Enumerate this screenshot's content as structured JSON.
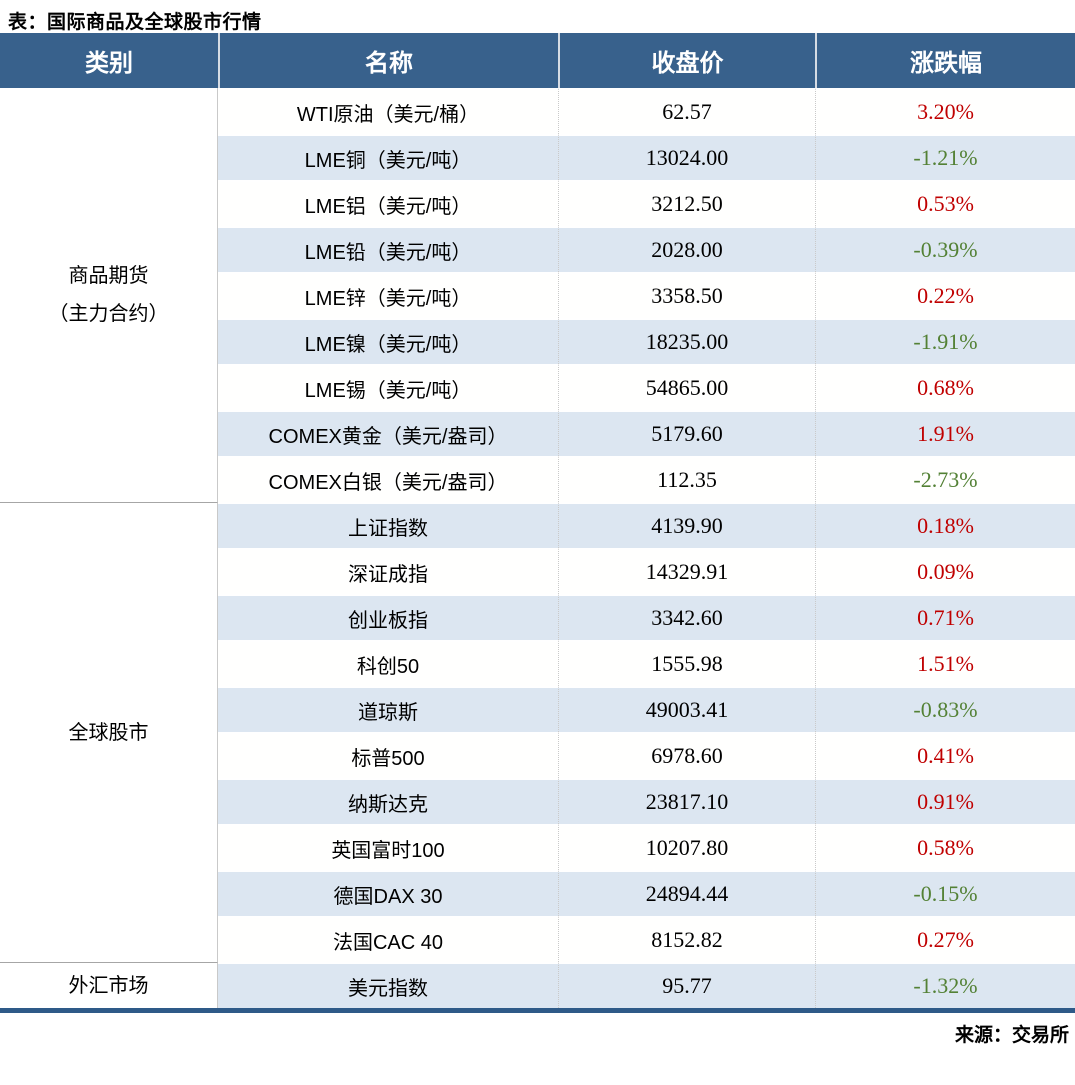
{
  "chart_data": {
    "type": "table",
    "title": "表：国际商品及全球股市行情",
    "source": "来源：交易所",
    "columns": [
      "类别",
      "名称",
      "收盘价",
      "涨跌幅"
    ],
    "groups": [
      {
        "category": "商品期货\n（主力合约）",
        "rows": [
          {
            "name": "WTI原油（美元/桶）",
            "close": "62.57",
            "change": "3.20%",
            "dir": "up"
          },
          {
            "name": "LME铜（美元/吨）",
            "close": "13024.00",
            "change": "-1.21%",
            "dir": "down"
          },
          {
            "name": "LME铝（美元/吨）",
            "close": "3212.50",
            "change": "0.53%",
            "dir": "up"
          },
          {
            "name": "LME铅（美元/吨）",
            "close": "2028.00",
            "change": "-0.39%",
            "dir": "down"
          },
          {
            "name": "LME锌（美元/吨）",
            "close": "3358.50",
            "change": "0.22%",
            "dir": "up"
          },
          {
            "name": "LME镍（美元/吨）",
            "close": "18235.00",
            "change": "-1.91%",
            "dir": "down"
          },
          {
            "name": "LME锡（美元/吨）",
            "close": "54865.00",
            "change": "0.68%",
            "dir": "up"
          },
          {
            "name": "COMEX黄金（美元/盎司）",
            "close": "5179.60",
            "change": "1.91%",
            "dir": "up"
          },
          {
            "name": "COMEX白银（美元/盎司）",
            "close": "112.35",
            "change": "-2.73%",
            "dir": "down"
          }
        ]
      },
      {
        "category": "全球股市",
        "rows": [
          {
            "name": "上证指数",
            "close": "4139.90",
            "change": "0.18%",
            "dir": "up"
          },
          {
            "name": "深证成指",
            "close": "14329.91",
            "change": "0.09%",
            "dir": "up"
          },
          {
            "name": "创业板指",
            "close": "3342.60",
            "change": "0.71%",
            "dir": "up"
          },
          {
            "name": "科创50",
            "close": "1555.98",
            "change": "1.51%",
            "dir": "up"
          },
          {
            "name": "道琼斯",
            "close": "49003.41",
            "change": "-0.83%",
            "dir": "down"
          },
          {
            "name": "标普500",
            "close": "6978.60",
            "change": "0.41%",
            "dir": "up"
          },
          {
            "name": "纳斯达克",
            "close": "23817.10",
            "change": "0.91%",
            "dir": "up"
          },
          {
            "name": "英国富时100",
            "close": "10207.80",
            "change": "0.58%",
            "dir": "up"
          },
          {
            "name": "德国DAX 30",
            "close": "24894.44",
            "change": "-0.15%",
            "dir": "down"
          },
          {
            "name": "法国CAC 40",
            "close": "8152.82",
            "change": "0.27%",
            "dir": "up"
          }
        ]
      },
      {
        "category": "外汇市场",
        "rows": [
          {
            "name": "美元指数",
            "close": "95.77",
            "change": "-1.32%",
            "dir": "down"
          }
        ]
      }
    ],
    "colors": {
      "header_bg": "#38618C",
      "row_stripe": "#DCE6F1",
      "up_red": "#C00000",
      "down_green": "#538135",
      "bottom_border": "#2E5A88"
    }
  }
}
